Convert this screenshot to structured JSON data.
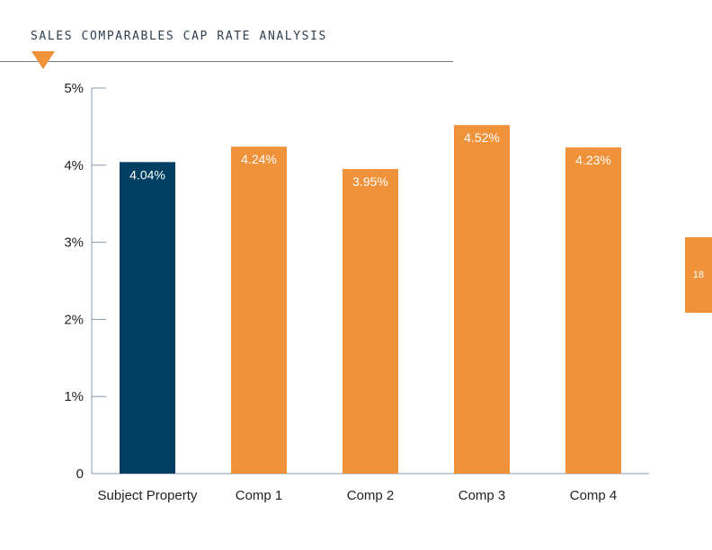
{
  "page": {
    "title": "SALES COMPARABLES CAP RATE ANALYSIS",
    "page_number": "18"
  },
  "colors": {
    "subject": "#003f62",
    "comps": "#f0923a",
    "axis": "#8a9bb0",
    "accent": "#f0923a"
  },
  "chart_data": {
    "type": "bar",
    "categories": [
      "Subject Property",
      "Comp 1",
      "Comp 2",
      "Comp 3",
      "Comp 4"
    ],
    "values": [
      4.04,
      4.24,
      3.95,
      4.52,
      4.23
    ],
    "value_labels": [
      "4.04%",
      "4.24%",
      "3.95%",
      "4.52%",
      "4.23%"
    ],
    "ylim": [
      0,
      5
    ],
    "yticks": [
      0,
      1,
      2,
      3,
      4,
      5
    ],
    "ytick_labels": [
      "0",
      "1%",
      "2%",
      "3%",
      "4%",
      "5%"
    ],
    "bar_colors": [
      "#003f62",
      "#f0923a",
      "#f0923a",
      "#f0923a",
      "#f0923a"
    ],
    "grid": false,
    "legend": "none"
  }
}
